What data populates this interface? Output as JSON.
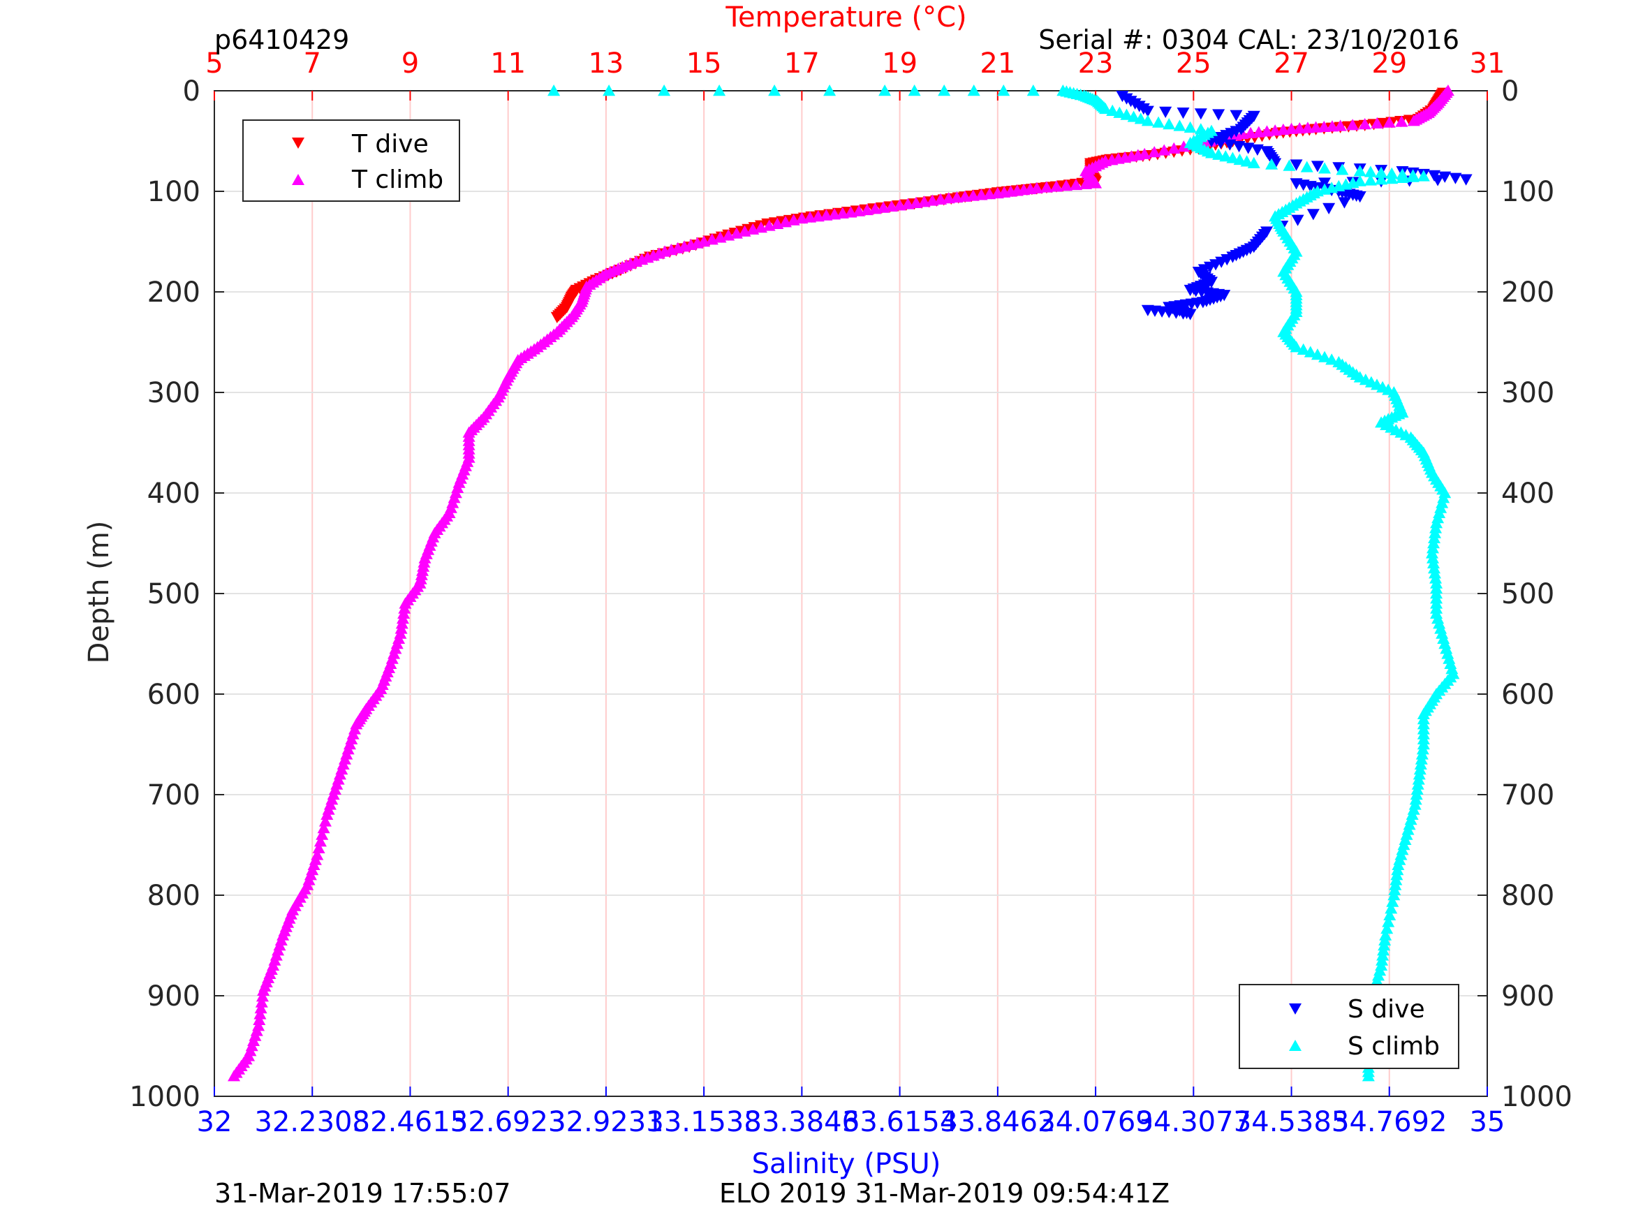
{
  "header": {
    "profile_id": "p6410429",
    "serial": "Serial #: 0304  CAL: 23/10/2016"
  },
  "footer": {
    "left_timestamp": "31-Mar-2019 17:55:07",
    "center_text": "ELO 2019 31-Mar-2019 09:54:41Z"
  },
  "colors": {
    "t_dive": "#ff0000",
    "t_climb": "#ff00ff",
    "s_dive": "#0000ff",
    "s_climb": "#00ffff",
    "temp_axis": "#ff0000",
    "sal_axis": "#0000ff",
    "grid": "#ffcccc",
    "hgrid": "#e3e3e3"
  },
  "chart_data": {
    "type": "scatter",
    "title": "",
    "temp_axis": {
      "label": "Temperature (°C)",
      "range": [
        5,
        31
      ],
      "ticks": [
        "5",
        "7",
        "9",
        "11",
        "13",
        "15",
        "17",
        "19",
        "21",
        "23",
        "25",
        "27",
        "29",
        "31"
      ]
    },
    "salinity_axis": {
      "label": "Salinity (PSU)",
      "range": [
        32,
        35
      ],
      "ticks": [
        "32",
        "32.2308",
        "32.4615",
        "32.6923",
        "32.9231",
        "33.1538",
        "33.3846",
        "33.6154",
        "33.8462",
        "34.0769",
        "34.3077",
        "34.5385",
        "34.7692",
        "35"
      ]
    },
    "depth_axis": {
      "label": "Depth (m)",
      "range": [
        0,
        1000
      ],
      "reversed": true,
      "ticks": [
        "0",
        "100",
        "200",
        "300",
        "400",
        "500",
        "600",
        "700",
        "800",
        "900",
        "1000"
      ]
    },
    "legends": {
      "temperature": {
        "position": "top-left",
        "entries": [
          "T dive",
          "T climb"
        ]
      },
      "salinity": {
        "position": "bottom-right",
        "entries": [
          "S dive",
          "S climb"
        ]
      }
    },
    "series": [
      {
        "name": "T dive",
        "axis": "temperature",
        "marker": "triangle-down",
        "points": [
          [
            30.1,
            2
          ],
          [
            30.0,
            10
          ],
          [
            29.9,
            18
          ],
          [
            29.6,
            28
          ],
          [
            28.5,
            34
          ],
          [
            27.5,
            38
          ],
          [
            26.7,
            42
          ],
          [
            25.8,
            50
          ],
          [
            25.1,
            57
          ],
          [
            24.1,
            64
          ],
          [
            23.3,
            68
          ],
          [
            22.9,
            72
          ],
          [
            22.9,
            82
          ],
          [
            23.0,
            90
          ],
          [
            22.2,
            95
          ],
          [
            21.6,
            98
          ],
          [
            21.0,
            101
          ],
          [
            20.2,
            106
          ],
          [
            19.3,
            112
          ],
          [
            18.3,
            118
          ],
          [
            17.2,
            125
          ],
          [
            16.3,
            132
          ],
          [
            15.5,
            143
          ],
          [
            14.7,
            155
          ],
          [
            13.9,
            165
          ],
          [
            13.3,
            178
          ],
          [
            12.8,
            188
          ],
          [
            12.4,
            198
          ],
          [
            12.3,
            205
          ],
          [
            12.2,
            215
          ],
          [
            12.0,
            225
          ]
        ]
      },
      {
        "name": "T climb",
        "axis": "temperature",
        "marker": "triangle-up",
        "points": [
          [
            30.2,
            0
          ],
          [
            30.0,
            12
          ],
          [
            29.8,
            22
          ],
          [
            29.5,
            30
          ],
          [
            28.0,
            35
          ],
          [
            27.0,
            38
          ],
          [
            26.0,
            43
          ],
          [
            25.2,
            52
          ],
          [
            24.0,
            63
          ],
          [
            23.2,
            70
          ],
          [
            22.8,
            80
          ],
          [
            23.0,
            92
          ],
          [
            21.8,
            97
          ],
          [
            21.0,
            102
          ],
          [
            20.0,
            107
          ],
          [
            19.0,
            114
          ],
          [
            18.0,
            121
          ],
          [
            17.0,
            127
          ],
          [
            16.0,
            138
          ],
          [
            15.0,
            150
          ],
          [
            14.2,
            160
          ],
          [
            13.5,
            172
          ],
          [
            13.0,
            182
          ],
          [
            12.6,
            195
          ],
          [
            12.5,
            210
          ],
          [
            12.3,
            225
          ],
          [
            12.0,
            240
          ],
          [
            11.6,
            255
          ],
          [
            11.2,
            268
          ],
          [
            11.0,
            285
          ],
          [
            10.8,
            305
          ],
          [
            10.5,
            325
          ],
          [
            10.2,
            340
          ],
          [
            10.2,
            365
          ],
          [
            10.0,
            390
          ],
          [
            9.8,
            420
          ],
          [
            9.5,
            440
          ],
          [
            9.3,
            465
          ],
          [
            9.2,
            490
          ],
          [
            8.9,
            510
          ],
          [
            8.8,
            540
          ],
          [
            8.6,
            570
          ],
          [
            8.4,
            595
          ],
          [
            8.1,
            615
          ],
          [
            7.9,
            630
          ],
          [
            7.7,
            660
          ],
          [
            7.5,
            690
          ],
          [
            7.3,
            720
          ],
          [
            7.1,
            760
          ],
          [
            6.9,
            790
          ],
          [
            6.6,
            815
          ],
          [
            6.4,
            840
          ],
          [
            6.2,
            870
          ],
          [
            6.0,
            895
          ],
          [
            5.9,
            930
          ],
          [
            5.7,
            960
          ],
          [
            5.4,
            980
          ]
        ]
      },
      {
        "name": "S dive",
        "axis": "salinity",
        "marker": "triangle-down",
        "points": [
          [
            34.14,
            5
          ],
          [
            34.2,
            20
          ],
          [
            34.45,
            25
          ],
          [
            34.42,
            38
          ],
          [
            34.35,
            50
          ],
          [
            34.48,
            60
          ],
          [
            34.5,
            72
          ],
          [
            34.8,
            80
          ],
          [
            34.95,
            88
          ],
          [
            34.55,
            92
          ],
          [
            34.65,
            100
          ],
          [
            34.7,
            105
          ],
          [
            34.48,
            140
          ],
          [
            34.45,
            155
          ],
          [
            34.4,
            165
          ],
          [
            34.32,
            180
          ],
          [
            34.35,
            190
          ],
          [
            34.3,
            198
          ],
          [
            34.38,
            203
          ],
          [
            34.33,
            210
          ],
          [
            34.25,
            215
          ],
          [
            34.3,
            222
          ],
          [
            34.2,
            218
          ]
        ]
      },
      {
        "name": "S climb",
        "axis": "salinity",
        "marker": "triangle-up",
        "points": [
          [
            32.8,
            0
          ],
          [
            33.58,
            0
          ],
          [
            34.0,
            0
          ],
          [
            34.05,
            5
          ],
          [
            34.08,
            10
          ],
          [
            34.1,
            18
          ],
          [
            34.2,
            30
          ],
          [
            34.35,
            40
          ],
          [
            34.3,
            52
          ],
          [
            34.35,
            62
          ],
          [
            34.45,
            72
          ],
          [
            34.7,
            80
          ],
          [
            34.85,
            85
          ],
          [
            34.7,
            90
          ],
          [
            34.6,
            100
          ],
          [
            34.55,
            112
          ],
          [
            34.5,
            125
          ],
          [
            34.52,
            140
          ],
          [
            34.55,
            160
          ],
          [
            34.52,
            180
          ],
          [
            34.55,
            200
          ],
          [
            34.55,
            220
          ],
          [
            34.52,
            240
          ],
          [
            34.55,
            255
          ],
          [
            34.65,
            270
          ],
          [
            34.7,
            285
          ],
          [
            34.78,
            300
          ],
          [
            34.8,
            320
          ],
          [
            34.75,
            330
          ],
          [
            34.82,
            345
          ],
          [
            34.85,
            360
          ],
          [
            34.87,
            380
          ],
          [
            34.9,
            400
          ],
          [
            34.88,
            430
          ],
          [
            34.87,
            460
          ],
          [
            34.88,
            490
          ],
          [
            34.88,
            520
          ],
          [
            34.9,
            550
          ],
          [
            34.92,
            580
          ],
          [
            34.88,
            600
          ],
          [
            34.85,
            620
          ],
          [
            34.85,
            650
          ],
          [
            34.84,
            680
          ],
          [
            34.83,
            710
          ],
          [
            34.81,
            740
          ],
          [
            34.79,
            770
          ],
          [
            34.78,
            800
          ],
          [
            34.76,
            840
          ],
          [
            34.75,
            870
          ],
          [
            34.73,
            900
          ],
          [
            34.72,
            930
          ],
          [
            34.72,
            955
          ],
          [
            34.72,
            980
          ]
        ]
      }
    ]
  }
}
